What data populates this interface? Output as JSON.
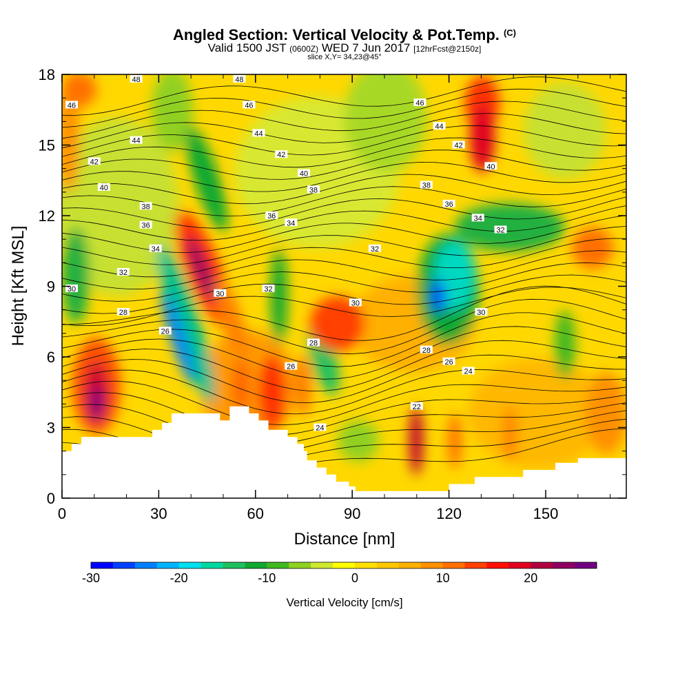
{
  "header": {
    "title": "Angled Section: Vertical Velocity & Pot.Temp.",
    "title_unit": "(C)",
    "valid_prefix": "Valid 1500 JST",
    "valid_utc": "(0600Z)",
    "valid_date": "WED 7 Jun 2017",
    "forecast": "[12hrFcst@2150z]",
    "slice": "slice X,Y= 34,23@45°"
  },
  "chart_data": {
    "type": "heatmap",
    "title": "Angled Section: Vertical Velocity & Pot.Temp.",
    "xlabel": "Distance [nm]",
    "ylabel": "Height [Kft MSL]",
    "xlim": [
      0,
      175
    ],
    "ylim": [
      0,
      18
    ],
    "x_ticks": [
      "0",
      "30",
      "60",
      "90",
      "120",
      "150"
    ],
    "y_ticks": [
      "0",
      "3",
      "6",
      "9",
      "12",
      "15",
      "18"
    ],
    "colorbar": {
      "label": "Vertical Velocity [cm/s]",
      "range": [
        -30,
        25
      ],
      "step": 2.5,
      "tick_labels": [
        "-30",
        "-20",
        "-10",
        "0",
        "10",
        "20"
      ],
      "colors": [
        "#0000ff",
        "#0040ff",
        "#0080ff",
        "#00b4ff",
        "#00e0f0",
        "#00d8a0",
        "#20c060",
        "#10a830",
        "#40b820",
        "#90d020",
        "#d0e830",
        "#ffff00",
        "#ffe000",
        "#ffc800",
        "#ffb000",
        "#ff9000",
        "#ff7000",
        "#ff4000",
        "#ff1000",
        "#e00020",
        "#b00040",
        "#900060",
        "#700080"
      ]
    },
    "terrain": [
      [
        0,
        2
      ],
      [
        3,
        2
      ],
      [
        3,
        2.3
      ],
      [
        6,
        2.3
      ],
      [
        6,
        2.6
      ],
      [
        28,
        2.6
      ],
      [
        28,
        2.9
      ],
      [
        31,
        2.9
      ],
      [
        31,
        3.2
      ],
      [
        34,
        3.2
      ],
      [
        34,
        3.6
      ],
      [
        49,
        3.6
      ],
      [
        49,
        3.3
      ],
      [
        52,
        3.3
      ],
      [
        52,
        3.9
      ],
      [
        58,
        3.9
      ],
      [
        58,
        3.6
      ],
      [
        61,
        3.6
      ],
      [
        61,
        3.3
      ],
      [
        64,
        3.3
      ],
      [
        64,
        2.9
      ],
      [
        70,
        2.9
      ],
      [
        70,
        2.6
      ],
      [
        73,
        2.6
      ],
      [
        73,
        2.3
      ],
      [
        75,
        2.3
      ],
      [
        75,
        2
      ],
      [
        76,
        2
      ],
      [
        76,
        1.6
      ],
      [
        79,
        1.6
      ],
      [
        79,
        1.3
      ],
      [
        82,
        1.3
      ],
      [
        82,
        1
      ],
      [
        85,
        1
      ],
      [
        85,
        0.7
      ],
      [
        89,
        0.7
      ],
      [
        89,
        0.5
      ],
      [
        91,
        0.5
      ],
      [
        91,
        0.3
      ],
      [
        120,
        0.3
      ],
      [
        120,
        0.6
      ],
      [
        128,
        0.6
      ],
      [
        128,
        0.9
      ],
      [
        143,
        0.9
      ],
      [
        143,
        1.2
      ],
      [
        153,
        1.2
      ],
      [
        153,
        1.5
      ],
      [
        160,
        1.5
      ],
      [
        160,
        1.7
      ],
      [
        175,
        1.7
      ]
    ],
    "contour_labels": [
      {
        "x": 23,
        "y": 17.8,
        "v": "48"
      },
      {
        "x": 55,
        "y": 17.8,
        "v": "48"
      },
      {
        "x": 3,
        "y": 16.7,
        "v": "46"
      },
      {
        "x": 58,
        "y": 16.7,
        "v": "46"
      },
      {
        "x": 111,
        "y": 16.8,
        "v": "46"
      },
      {
        "x": 23,
        "y": 15.2,
        "v": "44"
      },
      {
        "x": 61,
        "y": 15.5,
        "v": "44"
      },
      {
        "x": 117,
        "y": 15.8,
        "v": "44"
      },
      {
        "x": 10,
        "y": 14.3,
        "v": "42"
      },
      {
        "x": 68,
        "y": 14.6,
        "v": "42"
      },
      {
        "x": 123,
        "y": 15,
        "v": "42"
      },
      {
        "x": 13,
        "y": 13.2,
        "v": "40"
      },
      {
        "x": 75,
        "y": 13.8,
        "v": "40"
      },
      {
        "x": 133,
        "y": 14.1,
        "v": "40"
      },
      {
        "x": 26,
        "y": 12.4,
        "v": "38"
      },
      {
        "x": 78,
        "y": 13.1,
        "v": "38"
      },
      {
        "x": 113,
        "y": 13.3,
        "v": "38"
      },
      {
        "x": 26,
        "y": 11.6,
        "v": "36"
      },
      {
        "x": 65,
        "y": 12,
        "v": "36"
      },
      {
        "x": 120,
        "y": 12.5,
        "v": "36"
      },
      {
        "x": 29,
        "y": 10.6,
        "v": "34"
      },
      {
        "x": 71,
        "y": 11.7,
        "v": "34"
      },
      {
        "x": 129,
        "y": 11.9,
        "v": "34"
      },
      {
        "x": 19,
        "y": 9.6,
        "v": "32"
      },
      {
        "x": 64,
        "y": 8.9,
        "v": "32"
      },
      {
        "x": 97,
        "y": 10.6,
        "v": "32"
      },
      {
        "x": 136,
        "y": 11.4,
        "v": "32"
      },
      {
        "x": 3,
        "y": 8.9,
        "v": "30"
      },
      {
        "x": 49,
        "y": 8.7,
        "v": "30"
      },
      {
        "x": 91,
        "y": 8.3,
        "v": "30"
      },
      {
        "x": 130,
        "y": 7.9,
        "v": "30"
      },
      {
        "x": 19,
        "y": 7.9,
        "v": "28"
      },
      {
        "x": 78,
        "y": 6.6,
        "v": "28"
      },
      {
        "x": 113,
        "y": 6.3,
        "v": "28"
      },
      {
        "x": 32,
        "y": 7.1,
        "v": "26"
      },
      {
        "x": 71,
        "y": 5.6,
        "v": "26"
      },
      {
        "x": 120,
        "y": 5.8,
        "v": "26"
      },
      {
        "x": 126,
        "y": 5.4,
        "v": "24"
      },
      {
        "x": 80,
        "y": 3,
        "v": "24"
      },
      {
        "x": 110,
        "y": 3.9,
        "v": "22"
      }
    ]
  }
}
